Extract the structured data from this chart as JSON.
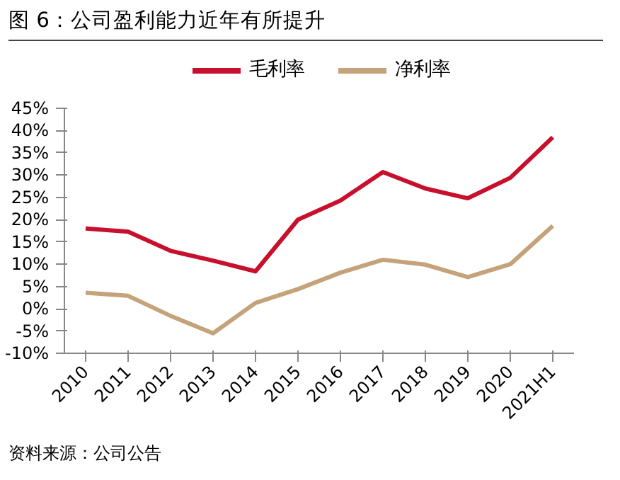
{
  "chart_data": {
    "type": "line",
    "title": "图 6：公司盈利能力近年有所提升",
    "categories": [
      "2010",
      "2011",
      "2012",
      "2013",
      "2014",
      "2015",
      "2016",
      "2017",
      "2018",
      "2019",
      "2020",
      "2021H1"
    ],
    "series": [
      {
        "name": "毛利率",
        "color": "#c8102e",
        "values": [
          18,
          17.3,
          13,
          10.8,
          8.4,
          20,
          24.3,
          30.7,
          27,
          24.8,
          29.4,
          38.5
        ]
      },
      {
        "name": "净利率",
        "color": "#c4a27a",
        "values": [
          3.6,
          2.9,
          -1.6,
          -5.5,
          1.3,
          4.4,
          8.1,
          11,
          9.9,
          7.1,
          10,
          18.6
        ]
      }
    ],
    "ylim": [
      -10,
      45
    ],
    "yticks": [
      {
        "value": -10,
        "label": "-10%"
      },
      {
        "value": -5,
        "label": "-5%"
      },
      {
        "value": 0,
        "label": "0%"
      },
      {
        "value": 5,
        "label": "5%"
      },
      {
        "value": 10,
        "label": "10%"
      },
      {
        "value": 15,
        "label": "15%"
      },
      {
        "value": 20,
        "label": "20%"
      },
      {
        "value": 25,
        "label": "25%"
      },
      {
        "value": 30,
        "label": "30%"
      },
      {
        "value": 35,
        "label": "35%"
      },
      {
        "value": 40,
        "label": "40%"
      },
      {
        "value": 45,
        "label": "45%"
      }
    ],
    "grid": false,
    "legend": "top",
    "marker": "none",
    "line_style": "solid",
    "annotations": [
      "资料来源：公司公告"
    ]
  }
}
